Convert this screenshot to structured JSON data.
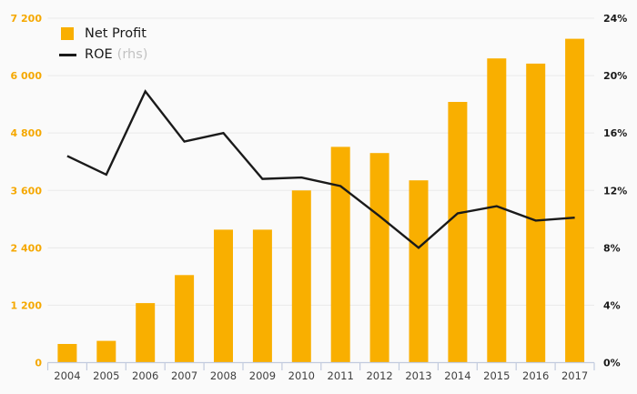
{
  "legend": {
    "net_profit_label": "Net Profit",
    "roe_label": "ROE",
    "roe_suffix": "(rhs)"
  },
  "colors": {
    "background": "#FAFAFA",
    "bar": "#F9AF00",
    "line": "#1A1A1A",
    "left_axis_label": "#F5A800",
    "right_axis_label": "#1A1A1A",
    "grid": "#E9E9E9",
    "axis_line": "#C2CBDE",
    "year_label": "#404040",
    "legend_text": "#1A1A1A",
    "legend_suffix": "#C2C2C2"
  },
  "chart_data": {
    "type": "bar",
    "subtype": "combo-bar-line",
    "title": "",
    "categories": [
      "2004",
      "2005",
      "2006",
      "2007",
      "2008",
      "2009",
      "2010",
      "2011",
      "2012",
      "2013",
      "2014",
      "2015",
      "2016",
      "2017"
    ],
    "series": [
      {
        "name": "Net Profit",
        "type": "bar",
        "axis": "left",
        "values": [
          390,
          455,
          1245,
          1830,
          2780,
          2780,
          3600,
          4510,
          4380,
          3810,
          5450,
          6360,
          6250,
          6770
        ]
      },
      {
        "name": "ROE (rhs)",
        "type": "line",
        "axis": "right",
        "values": [
          14.4,
          13.1,
          18.9,
          15.4,
          16.0,
          12.8,
          12.9,
          12.3,
          10.2,
          8.0,
          10.4,
          10.9,
          9.9,
          10.1
        ]
      }
    ],
    "left_axis": {
      "min": 0,
      "max": 7200,
      "step": 1200,
      "ticks": [
        "0",
        "1 200",
        "2 400",
        "3 600",
        "4 800",
        "6 000",
        "7 200"
      ]
    },
    "right_axis": {
      "min": 0,
      "max": 24,
      "step": 4,
      "ticks": [
        "0%",
        "4%",
        "8%",
        "12%",
        "16%",
        "20%",
        "24%"
      ]
    },
    "grid": true,
    "legend_position": "top-left"
  }
}
